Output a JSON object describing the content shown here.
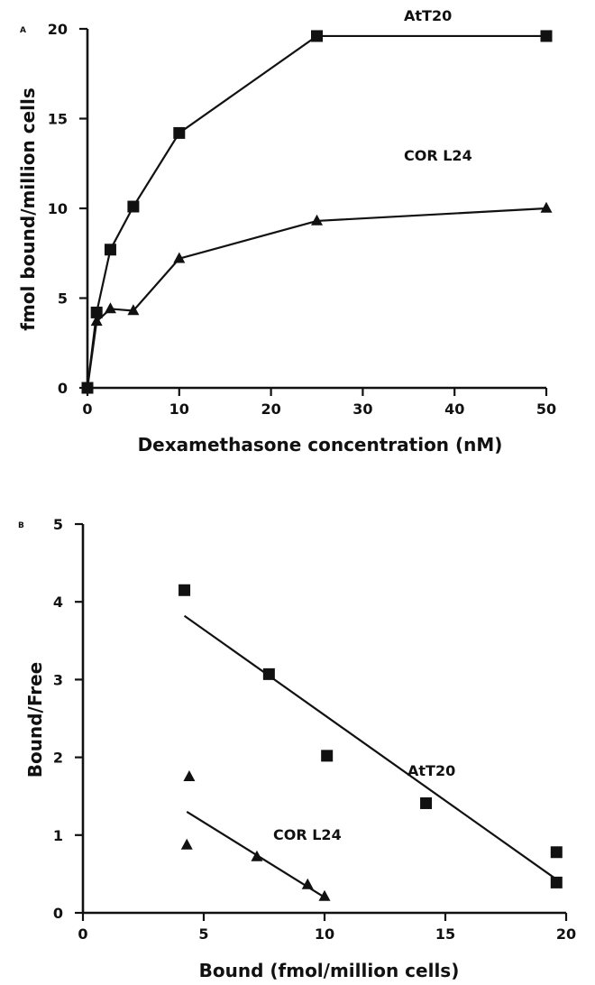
{
  "chart_data": [
    {
      "panel": "A",
      "type": "line",
      "xlabel": "Dexamethasone concentration (nM)",
      "ylabel": "fmol bound/million cells",
      "xlim": [
        0,
        50
      ],
      "ylim": [
        0,
        20
      ],
      "xticks": [
        0,
        10,
        20,
        30,
        40,
        50
      ],
      "yticks": [
        0,
        5,
        10,
        15,
        20
      ],
      "series": [
        {
          "name": "AtT20",
          "marker": "square",
          "x": [
            0,
            1,
            2.5,
            5,
            10,
            25,
            50
          ],
          "y": [
            0,
            4.2,
            7.7,
            10.1,
            14.2,
            19.6,
            19.6
          ]
        },
        {
          "name": "COR L24",
          "marker": "triangle",
          "x": [
            0,
            1,
            2.5,
            5,
            10,
            25,
            50
          ],
          "y": [
            0,
            3.7,
            4.4,
            4.3,
            7.2,
            9.3,
            10.0
          ]
        }
      ]
    },
    {
      "panel": "B",
      "type": "scatter",
      "xlabel": "Bound (fmol/million cells)",
      "ylabel": "Bound/Free",
      "xlim": [
        0,
        20
      ],
      "ylim": [
        0,
        5
      ],
      "xticks": [
        0,
        5,
        10,
        15,
        20
      ],
      "yticks": [
        0,
        1,
        2,
        3,
        4,
        5
      ],
      "series": [
        {
          "name": "AtT20",
          "marker": "square",
          "x": [
            4.2,
            7.7,
            10.1,
            14.2,
            19.6,
            19.6
          ],
          "y": [
            4.15,
            3.07,
            2.02,
            1.41,
            0.78,
            0.39
          ],
          "fit": [
            [
              4.2,
              3.82
            ],
            [
              19.6,
              0.43
            ]
          ]
        },
        {
          "name": "COR L24",
          "marker": "triangle",
          "x": [
            4.4,
            4.3,
            7.2,
            9.3,
            10.0
          ],
          "y": [
            1.75,
            0.87,
            0.72,
            0.36,
            0.21
          ],
          "fit": [
            [
              4.3,
              1.3
            ],
            [
              10.0,
              0.2
            ]
          ]
        }
      ]
    }
  ]
}
